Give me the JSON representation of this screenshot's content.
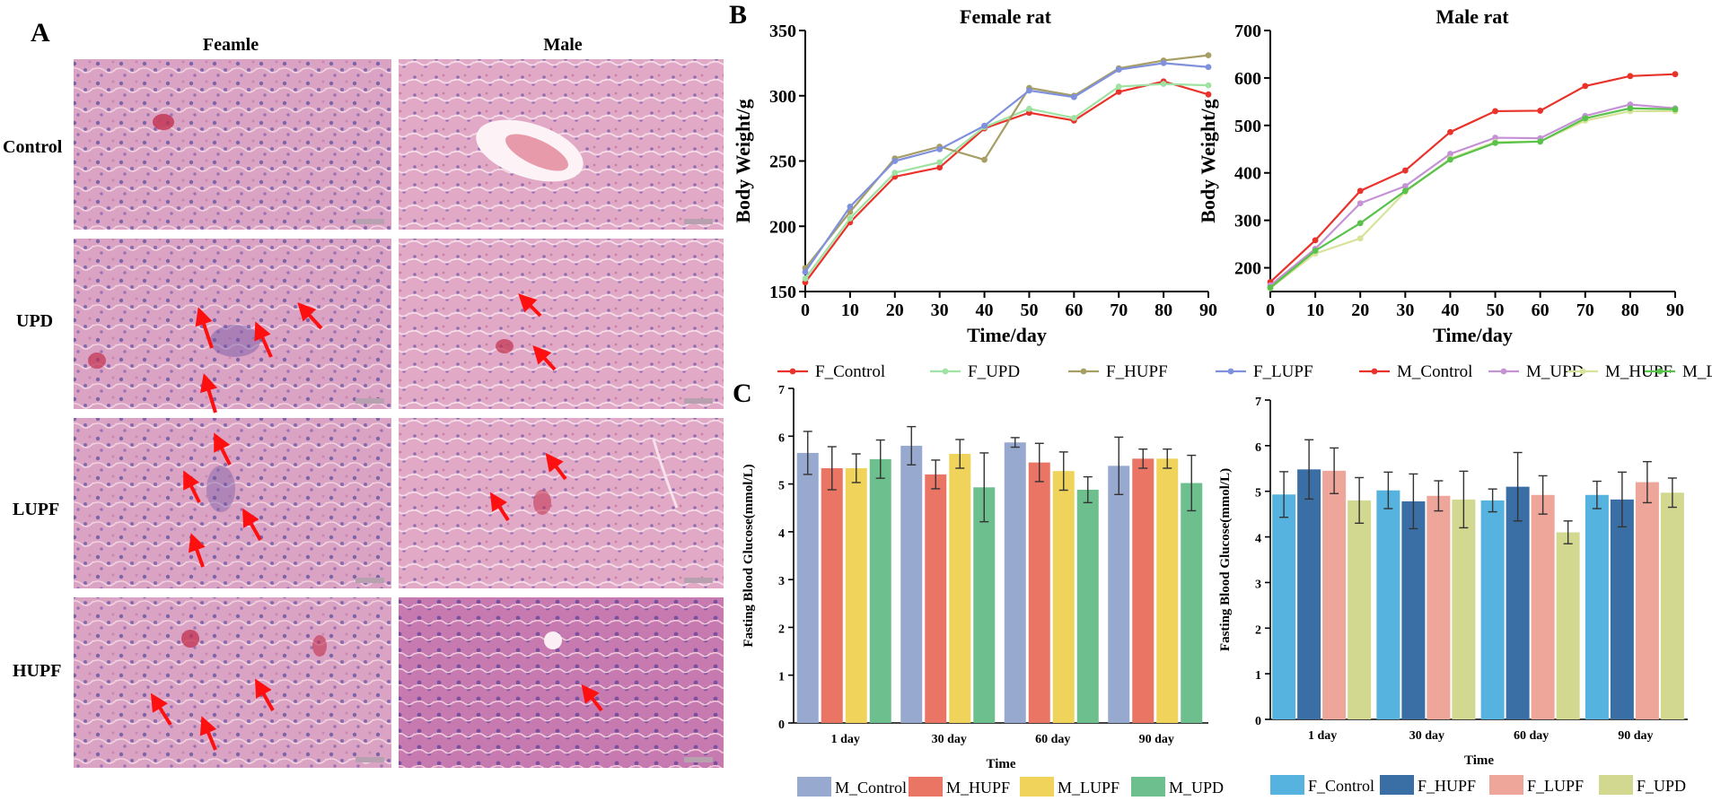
{
  "panel_labels": {
    "a": "A",
    "b": "B",
    "c": "C"
  },
  "histology": {
    "columns": [
      "Feamle",
      "Male"
    ],
    "rows": [
      "Control",
      "UPD",
      "LUPF",
      "HUPF"
    ]
  },
  "colors": {
    "F_Control": "#e8322a",
    "F_UPD": "#9fe3a4",
    "F_HUPF": "#a69e64",
    "F_LUPF": "#7f91dd",
    "M_Control": "#e8322a",
    "M_UPD": "#c592d6",
    "M_HUPF": "#d8e39a",
    "M_LUPF": "#58c24a",
    "bar_M_Control": "#98a9cf",
    "bar_M_HUPF": "#ea7565",
    "bar_M_LUPF": "#efd35a",
    "bar_M_UPD": "#6dbf8e",
    "bar_F_Control": "#56b2de",
    "bar_F_HUPF": "#3a6fa6",
    "bar_F_LUPF": "#eea59a",
    "bar_F_UPD": "#d3d891"
  },
  "chart_data": [
    {
      "type": "line",
      "title": "Female rat",
      "xlabel": "Time/day",
      "ylabel": "Body Weight/g",
      "x": [
        0,
        10,
        20,
        30,
        40,
        50,
        60,
        70,
        80,
        90
      ],
      "xlim": [
        0,
        90
      ],
      "ylim": [
        150,
        350
      ],
      "yticks": [
        150,
        200,
        250,
        300,
        350
      ],
      "series": [
        {
          "name": "F_Control",
          "values": [
            157,
            203,
            238,
            245,
            275,
            287,
            281,
            303,
            311,
            301
          ]
        },
        {
          "name": "F_UPD",
          "values": [
            160,
            206,
            241,
            249,
            276,
            290,
            283,
            307,
            309,
            308
          ]
        },
        {
          "name": "F_HUPF",
          "values": [
            168,
            211,
            252,
            261,
            251,
            306,
            300,
            321,
            327,
            331
          ]
        },
        {
          "name": "F_LUPF",
          "values": [
            165,
            215,
            250,
            259,
            277,
            304,
            299,
            320,
            325,
            322
          ]
        }
      ]
    },
    {
      "type": "line",
      "title": "Male rat",
      "xlabel": "Time/day",
      "ylabel": "Body Weight/g",
      "x": [
        0,
        10,
        20,
        30,
        40,
        50,
        60,
        70,
        80,
        90
      ],
      "xlim": [
        0,
        90
      ],
      "ylim": [
        150,
        700
      ],
      "yticks": [
        200,
        300,
        400,
        500,
        600,
        700
      ],
      "series": [
        {
          "name": "M_Control",
          "values": [
            170,
            258,
            362,
            405,
            486,
            530,
            531,
            583,
            604,
            608
          ]
        },
        {
          "name": "M_UPD",
          "values": [
            163,
            240,
            336,
            372,
            440,
            474,
            473,
            520,
            544,
            536
          ]
        },
        {
          "name": "M_HUPF",
          "values": [
            157,
            230,
            262,
            360,
            430,
            465,
            466,
            510,
            530,
            530
          ]
        },
        {
          "name": "M_LUPF",
          "values": [
            158,
            236,
            294,
            362,
            428,
            463,
            466,
            515,
            536,
            534
          ]
        }
      ]
    },
    {
      "type": "bar",
      "xlabel": "Time",
      "ylabel": "Fasting Blood Glucose(mmol/L)",
      "categories": [
        "1 day",
        "30 day",
        "60 day",
        "90 day"
      ],
      "ylim": [
        0,
        7
      ],
      "yticks": [
        0,
        1,
        2,
        3,
        4,
        5,
        6,
        7
      ],
      "series": [
        {
          "name": "M_Control",
          "values": [
            5.65,
            5.8,
            5.87,
            5.38
          ],
          "errors": [
            0.45,
            0.4,
            0.1,
            0.6
          ]
        },
        {
          "name": "M_HUPF",
          "values": [
            5.33,
            5.2,
            5.45,
            5.53
          ],
          "errors": [
            0.45,
            0.3,
            0.4,
            0.2
          ]
        },
        {
          "name": "M_LUPF",
          "values": [
            5.33,
            5.63,
            5.27,
            5.53
          ],
          "errors": [
            0.3,
            0.3,
            0.4,
            0.2
          ]
        },
        {
          "name": "M_UPD",
          "values": [
            5.52,
            4.93,
            4.88,
            5.02
          ],
          "errors": [
            0.4,
            0.72,
            0.27,
            0.58
          ]
        }
      ]
    },
    {
      "type": "bar",
      "xlabel": "Time",
      "ylabel": "Fasting Blood Glucose(mmol/L)",
      "categories": [
        "1 day",
        "30 day",
        "60 day",
        "90 day"
      ],
      "ylim": [
        0,
        7
      ],
      "yticks": [
        0,
        1,
        2,
        3,
        4,
        5,
        6,
        7
      ],
      "series": [
        {
          "name": "F_Control",
          "values": [
            4.93,
            5.02,
            4.8,
            4.92
          ],
          "errors": [
            0.5,
            0.4,
            0.25,
            0.3
          ]
        },
        {
          "name": "F_HUPF",
          "values": [
            5.48,
            4.78,
            5.1,
            4.82
          ],
          "errors": [
            0.65,
            0.6,
            0.75,
            0.6
          ]
        },
        {
          "name": "F_LUPF",
          "values": [
            5.45,
            4.9,
            4.92,
            5.2
          ],
          "errors": [
            0.5,
            0.33,
            0.42,
            0.45
          ]
        },
        {
          "name": "F_UPD",
          "values": [
            4.8,
            4.82,
            4.1,
            4.97
          ],
          "errors": [
            0.5,
            0.62,
            0.25,
            0.32
          ]
        }
      ]
    }
  ]
}
